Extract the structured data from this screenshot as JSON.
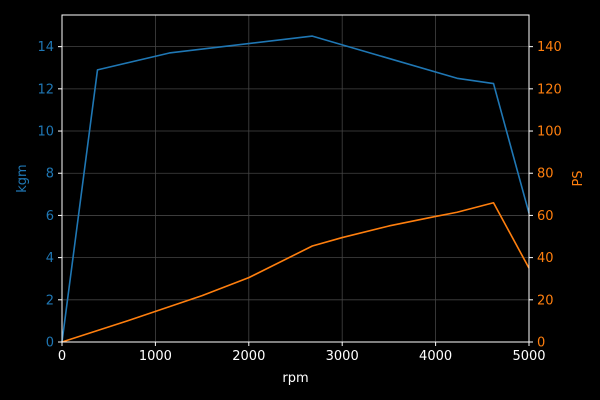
{
  "chart_data": {
    "type": "line",
    "xlabel": "rpm",
    "ylabel_left": "kgm",
    "ylabel_right": "PS",
    "xlim": [
      0,
      5000
    ],
    "ylim_left": [
      0,
      15.5
    ],
    "ylim_right": [
      0,
      155
    ],
    "xticks": [
      0,
      1000,
      2000,
      3000,
      4000,
      5000
    ],
    "yticks_left": [
      0,
      2,
      4,
      6,
      8,
      10,
      12,
      14
    ],
    "yticks_right": [
      0,
      20,
      40,
      60,
      80,
      100,
      120,
      140
    ],
    "grid": true,
    "colors": {
      "background": "#000000",
      "frame": "#ffffff",
      "grid": "#444444",
      "torque": "#1f77b4",
      "power": "#ff7f0e",
      "xaxis_text": "#ffffff"
    },
    "series": [
      {
        "axis": "left",
        "color": "#1f77b4",
        "points": [
          [
            0,
            0
          ],
          [
            380,
            12.9
          ],
          [
            1150,
            13.7
          ],
          [
            2680,
            14.5
          ],
          [
            4230,
            12.5
          ],
          [
            4620,
            12.25
          ],
          [
            5000,
            6.1
          ]
        ]
      },
      {
        "axis": "right",
        "color": "#ff7f0e",
        "points": [
          [
            0,
            0
          ],
          [
            700,
            10
          ],
          [
            1500,
            22
          ],
          [
            2000,
            30.5
          ],
          [
            2680,
            45.5
          ],
          [
            3000,
            49.5
          ],
          [
            3500,
            55
          ],
          [
            4000,
            59.5
          ],
          [
            4230,
            61.5
          ],
          [
            4620,
            66
          ],
          [
            5000,
            35
          ]
        ]
      }
    ]
  }
}
